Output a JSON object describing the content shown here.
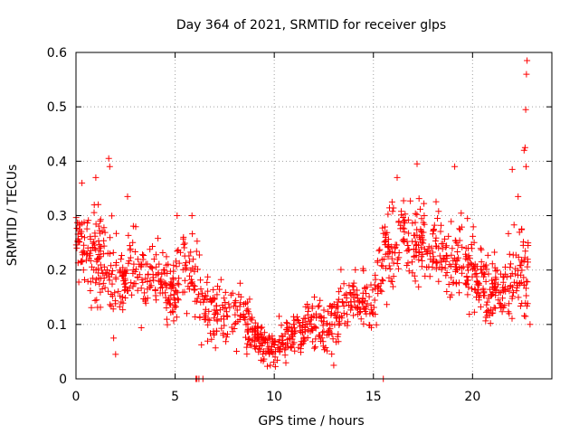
{
  "chart_data": {
    "type": "scatter",
    "title": "Day 364 of 2021, SRMTID for receiver glps",
    "xlabel": "GPS time / hours",
    "ylabel": "SRMTID / TECUs",
    "xlim": [
      0,
      24
    ],
    "ylim": [
      0,
      0.6
    ],
    "x_ticks": [
      0,
      5,
      10,
      15,
      20
    ],
    "x_tick_labels": [
      "0",
      "5",
      "10",
      "15",
      "20"
    ],
    "y_ticks": [
      0,
      0.1,
      0.2,
      0.3,
      0.4,
      0.5,
      0.6
    ],
    "y_tick_labels": [
      "0",
      "0.1",
      "0.2",
      "0.3",
      "0.4",
      "0.5",
      "0.6"
    ],
    "grid": true,
    "marker": "+",
    "color": "#ff0000",
    "series": [
      {
        "name": "SRMTID",
        "trend": {
          "x": [
            0,
            0.5,
            1,
            1.5,
            2,
            2.5,
            3,
            3.5,
            4,
            4.5,
            5,
            5.5,
            6,
            6.5,
            7,
            7.5,
            8,
            8.5,
            9,
            9.5,
            10,
            10.5,
            11,
            11.5,
            12,
            12.5,
            13,
            13.5,
            14,
            14.5,
            15,
            15.5,
            16,
            16.5,
            17,
            17.5,
            18,
            18.5,
            19,
            19.5,
            20,
            20.5,
            21,
            21.5,
            22,
            22.5,
            22.8
          ],
          "y": [
            0.24,
            0.22,
            0.23,
            0.21,
            0.18,
            0.19,
            0.21,
            0.17,
            0.18,
            0.17,
            0.16,
            0.21,
            0.19,
            0.14,
            0.12,
            0.13,
            0.12,
            0.11,
            0.08,
            0.07,
            0.06,
            0.07,
            0.08,
            0.09,
            0.11,
            0.1,
            0.1,
            0.12,
            0.15,
            0.15,
            0.14,
            0.22,
            0.25,
            0.27,
            0.24,
            0.25,
            0.22,
            0.24,
            0.2,
            0.23,
            0.2,
            0.18,
            0.17,
            0.16,
            0.19,
            0.2,
            0.18
          ],
          "spread": [
            0.06,
            0.06,
            0.07,
            0.07,
            0.06,
            0.06,
            0.06,
            0.05,
            0.05,
            0.05,
            0.05,
            0.06,
            0.06,
            0.05,
            0.05,
            0.05,
            0.05,
            0.04,
            0.03,
            0.03,
            0.03,
            0.03,
            0.03,
            0.03,
            0.04,
            0.04,
            0.04,
            0.05,
            0.05,
            0.05,
            0.05,
            0.06,
            0.06,
            0.06,
            0.06,
            0.06,
            0.06,
            0.06,
            0.06,
            0.06,
            0.06,
            0.05,
            0.05,
            0.05,
            0.06,
            0.07,
            0.07
          ]
        },
        "points_per_hour": 58,
        "extra_points": [
          {
            "x": 1.65,
            "y": 0.405
          },
          {
            "x": 1.7,
            "y": 0.39
          },
          {
            "x": 1.0,
            "y": 0.37
          },
          {
            "x": 0.3,
            "y": 0.36
          },
          {
            "x": 2.6,
            "y": 0.335
          },
          {
            "x": 5.1,
            "y": 0.3
          },
          {
            "x": 5.85,
            "y": 0.3
          },
          {
            "x": 6.05,
            "y": 0.0
          },
          {
            "x": 6.1,
            "y": 0.0
          },
          {
            "x": 6.2,
            "y": 0.0
          },
          {
            "x": 6.4,
            "y": 0.0
          },
          {
            "x": 15.5,
            "y": 0.0
          },
          {
            "x": 9.8,
            "y": 0.025
          },
          {
            "x": 13.0,
            "y": 0.025
          },
          {
            "x": 17.2,
            "y": 0.395
          },
          {
            "x": 19.1,
            "y": 0.39
          },
          {
            "x": 16.2,
            "y": 0.37
          },
          {
            "x": 22.0,
            "y": 0.385
          },
          {
            "x": 22.6,
            "y": 0.42
          },
          {
            "x": 22.65,
            "y": 0.425
          },
          {
            "x": 22.7,
            "y": 0.39
          },
          {
            "x": 22.68,
            "y": 0.495
          },
          {
            "x": 22.72,
            "y": 0.56
          },
          {
            "x": 22.75,
            "y": 0.585
          },
          {
            "x": 22.3,
            "y": 0.335
          },
          {
            "x": 22.8,
            "y": 0.25
          },
          {
            "x": 1.9,
            "y": 0.075
          },
          {
            "x": 2.0,
            "y": 0.045
          },
          {
            "x": 22.9,
            "y": 0.1
          }
        ]
      }
    ]
  }
}
